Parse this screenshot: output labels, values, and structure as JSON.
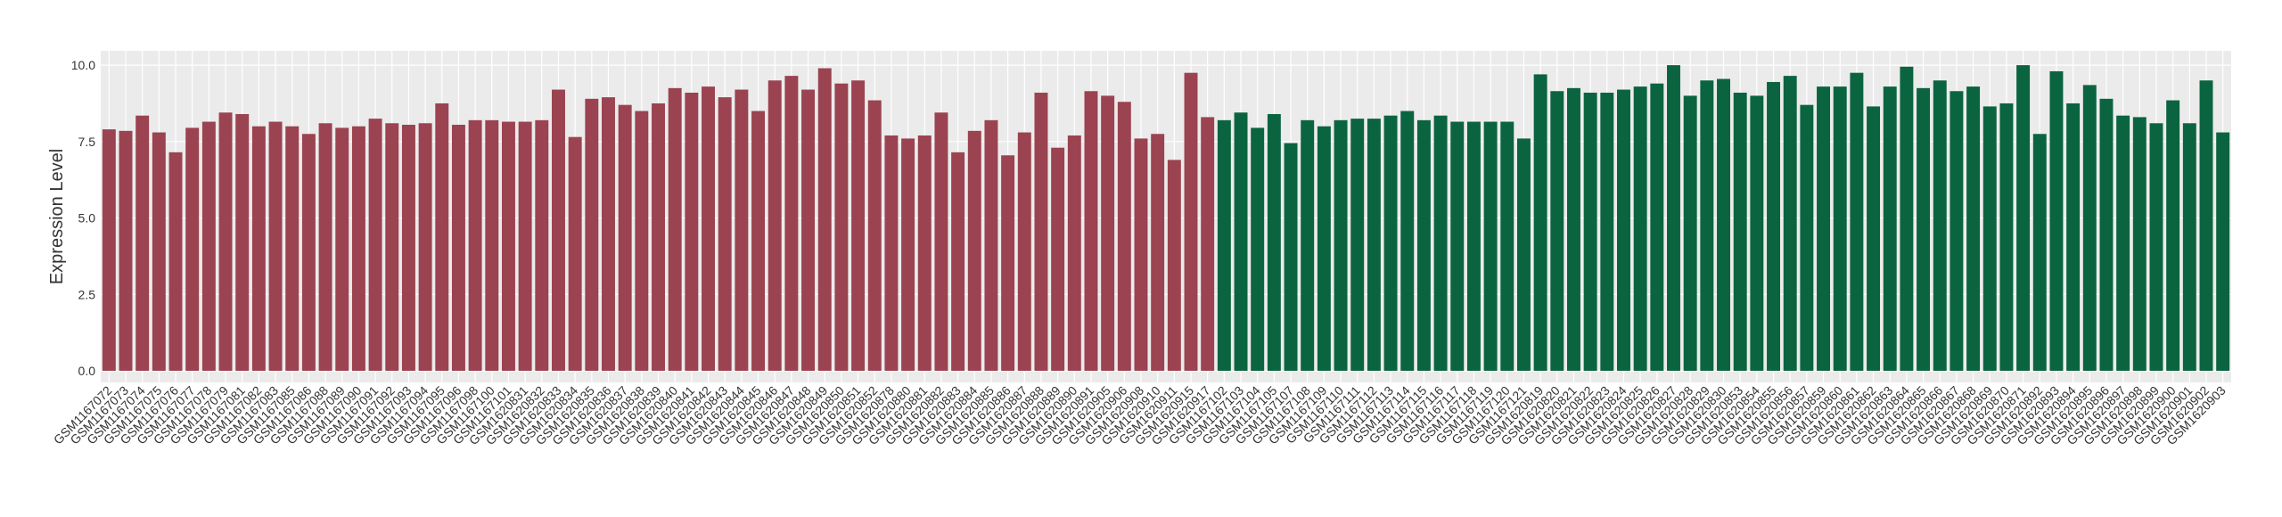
{
  "chart_data": {
    "type": "bar",
    "y_label": "Expression Level",
    "categories": [
      "GSM1167072",
      "GSM1167073",
      "GSM1167074",
      "GSM1167075",
      "GSM1167076",
      "GSM1167077",
      "GSM1167078",
      "GSM1167079",
      "GSM1167081",
      "GSM1167082",
      "GSM1167083",
      "GSM1167085",
      "GSM1167086",
      "GSM1167088",
      "GSM1167089",
      "GSM1167090",
      "GSM1167091",
      "GSM1167092",
      "GSM1167093",
      "GSM1167094",
      "GSM1167095",
      "GSM1167096",
      "GSM1167098",
      "GSM1167100",
      "GSM1167101",
      "GSM1620831",
      "GSM1620832",
      "GSM1620833",
      "GSM1620834",
      "GSM1620835",
      "GSM1620836",
      "GSM1620837",
      "GSM1620838",
      "GSM1620839",
      "GSM1620840",
      "GSM1620841",
      "GSM1620842",
      "GSM1620843",
      "GSM1620844",
      "GSM1620845",
      "GSM1620846",
      "GSM1620847",
      "GSM1620848",
      "GSM1620849",
      "GSM1620850",
      "GSM1620851",
      "GSM1620852",
      "GSM1620878",
      "GSM1620880",
      "GSM1620881",
      "GSM1620882",
      "GSM1620883",
      "GSM1620884",
      "GSM1620885",
      "GSM1620886",
      "GSM1620887",
      "GSM1620888",
      "GSM1620889",
      "GSM1620890",
      "GSM1620891",
      "GSM1620905",
      "GSM1620906",
      "GSM1620908",
      "GSM1620910",
      "GSM1620911",
      "GSM1620915",
      "GSM1620917",
      "GSM1167102",
      "GSM1167103",
      "GSM1167104",
      "GSM1167105",
      "GSM1167107",
      "GSM1167108",
      "GSM1167109",
      "GSM1167110",
      "GSM1167111",
      "GSM1167112",
      "GSM1167113",
      "GSM1167114",
      "GSM1167115",
      "GSM1167116",
      "GSM1167117",
      "GSM1167118",
      "GSM1167119",
      "GSM1167120",
      "GSM1167121",
      "GSM1620819",
      "GSM1620820",
      "GSM1620821",
      "GSM1620822",
      "GSM1620823",
      "GSM1620824",
      "GSM1620825",
      "GSM1620826",
      "GSM1620827",
      "GSM1620828",
      "GSM1620829",
      "GSM1620830",
      "GSM1620853",
      "GSM1620854",
      "GSM1620855",
      "GSM1620856",
      "GSM1620857",
      "GSM1620859",
      "GSM1620860",
      "GSM1620861",
      "GSM1620862",
      "GSM1620863",
      "GSM1620864",
      "GSM1620865",
      "GSM1620866",
      "GSM1620867",
      "GSM1620868",
      "GSM1620869",
      "GSM1620870",
      "GSM1620871",
      "GSM1620892",
      "GSM1620893",
      "GSM1620894",
      "GSM1620895",
      "GSM1620896",
      "GSM1620897",
      "GSM1620898",
      "GSM1620899",
      "GSM1620900",
      "GSM1620901",
      "GSM1620902",
      "GSM1620903"
    ],
    "series": [
      {
        "color": "#9b4350",
        "values": [
          7.9,
          7.85,
          8.35,
          7.8,
          7.15,
          7.95,
          8.15,
          8.45,
          8.4,
          8.0,
          8.15,
          8.0,
          7.75,
          8.1,
          7.95,
          8.0,
          8.25,
          8.1,
          8.05,
          8.1,
          8.75,
          8.05,
          8.2,
          8.2,
          8.15,
          8.15,
          8.2,
          9.2,
          7.65,
          8.9,
          8.95,
          8.7,
          8.5,
          8.75,
          9.25,
          9.1,
          9.3,
          8.95,
          9.2,
          8.5,
          9.5,
          9.65,
          9.2,
          9.9,
          9.4,
          9.5,
          8.85,
          7.7,
          7.6,
          7.7,
          8.45,
          7.15,
          7.85,
          8.2,
          7.05,
          7.8,
          9.1,
          7.3,
          7.7,
          9.15,
          9.0,
          8.8,
          7.6,
          7.75,
          6.9,
          9.75,
          8.3,
          null,
          null,
          null,
          null,
          null,
          null,
          null,
          null,
          null,
          null,
          null,
          null,
          null,
          null,
          null,
          null,
          null,
          null,
          null,
          null,
          null,
          null,
          null,
          null,
          null,
          null,
          null,
          null,
          null,
          null,
          null,
          null,
          null,
          null,
          null,
          null,
          null,
          null,
          null,
          null,
          null,
          null,
          null,
          null,
          null,
          null,
          null,
          null,
          null,
          null,
          null,
          null,
          null,
          null,
          null,
          null,
          null,
          null,
          null,
          null,
          null
        ]
      },
      {
        "color": "#0b6440",
        "values": [
          null,
          null,
          null,
          null,
          null,
          null,
          null,
          null,
          null,
          null,
          null,
          null,
          null,
          null,
          null,
          null,
          null,
          null,
          null,
          null,
          null,
          null,
          null,
          null,
          null,
          null,
          null,
          null,
          null,
          null,
          null,
          null,
          null,
          null,
          null,
          null,
          null,
          null,
          null,
          null,
          null,
          null,
          null,
          null,
          null,
          null,
          null,
          null,
          null,
          null,
          null,
          null,
          null,
          null,
          null,
          null,
          null,
          null,
          null,
          null,
          null,
          null,
          null,
          null,
          null,
          null,
          null,
          8.2,
          8.45,
          7.95,
          8.4,
          7.45,
          8.2,
          8.0,
          8.2,
          8.25,
          8.25,
          8.35,
          8.5,
          8.2,
          8.35,
          8.15,
          8.15,
          8.15,
          8.15,
          7.6,
          9.7,
          9.15,
          9.25,
          9.1,
          9.1,
          9.2,
          9.3,
          9.4,
          10.0,
          9.0,
          9.5,
          9.55,
          9.1,
          9.0,
          9.45,
          9.65,
          8.7,
          9.3,
          9.3,
          9.75,
          8.65,
          9.3,
          9.95,
          9.25,
          9.5,
          9.15,
          9.3,
          8.65,
          8.75,
          10.0,
          7.75,
          9.8,
          8.75,
          9.35,
          8.9,
          8.35,
          8.3,
          8.1,
          8.85,
          8.1,
          9.5,
          7.8
        ]
      }
    ],
    "ylim": [
      -0.38,
      10.47
    ],
    "yticks": [
      {
        "value": 0,
        "label": "0.0"
      },
      {
        "value": 2.5,
        "label": "2.5"
      },
      {
        "value": 5,
        "label": "5.0"
      },
      {
        "value": 7.5,
        "label": "7.5"
      },
      {
        "value": 10,
        "label": "10.0"
      }
    ],
    "grid": true
  }
}
